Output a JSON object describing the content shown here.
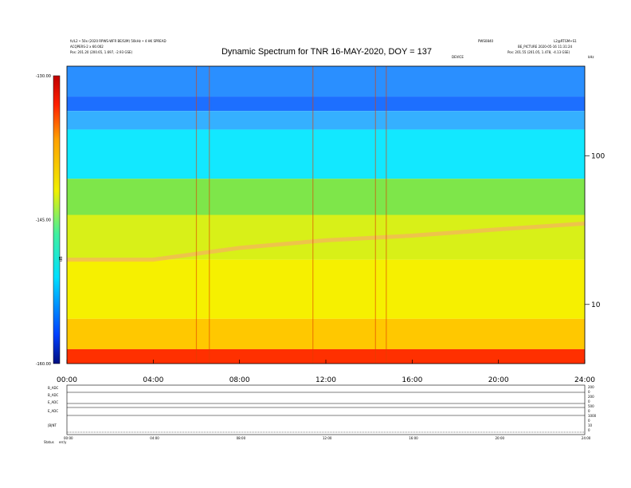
{
  "header": {
    "top_left_line1": "fs/L2 • 50x (2020 RPWS-WFR BE/S/M) 50kHz • 4 HK SPREAD",
    "top_left_line2": "ACQPERS-2 x 66:002",
    "top_left_line3": "Pos: 201.20 (200.65, 1.697, -2.93 GSE)",
    "top_right_line1": "PWS0840",
    "top_right_line2": "L2@RTGM+S1",
    "top_right_line3": "BE_PICTURE 2020-05-16 11:31:24",
    "top_right_line4": "Pos: 201.55 (201.05, 1.478, -4.13 GSE)",
    "center_small": "DEVICE",
    "corner_right": "kHz"
  },
  "chart_data": {
    "type": "heatmap",
    "title": "Dynamic Spectrum for TNR 16-MAY-2020, DOY = 137",
    "x_ticks": [
      "00:00",
      "04:00",
      "08:00",
      "12:00",
      "16:00",
      "20:00",
      "24:00"
    ],
    "xlim_hours": [
      0,
      24
    ],
    "y_scale": "log",
    "y_ticks": [
      "100",
      "10"
    ],
    "y_tick_values": [
      100,
      10
    ],
    "ylim_khz": [
      4,
      400
    ],
    "colorbar": {
      "label": "dB",
      "ticks": [
        "-130.00",
        "-145.00",
        "-160.00"
      ],
      "range_db": [
        -160,
        -130
      ],
      "colors": [
        "#001080",
        "#0040ff",
        "#00e0ff",
        "#40f0a0",
        "#f0f000",
        "#ffa000",
        "#ff2000",
        "#c00000"
      ]
    },
    "intensity_bands": [
      {
        "freq_top": 400,
        "freq_bottom": 250,
        "db": -131,
        "color": "#2a8fff"
      },
      {
        "freq_top": 250,
        "freq_bottom": 200,
        "db": -132,
        "color": "#1d6fff"
      },
      {
        "freq_top": 200,
        "freq_bottom": 150,
        "db": -134,
        "color": "#35b0ff"
      },
      {
        "freq_top": 150,
        "freq_bottom": 70,
        "db": -137,
        "color": "#12e8ff"
      },
      {
        "freq_top": 70,
        "freq_bottom": 40,
        "db": -143,
        "color": "#7ee64a"
      },
      {
        "freq_top": 40,
        "freq_bottom": 20,
        "db": -149,
        "color": "#d8f018"
      },
      {
        "freq_top": 20,
        "freq_bottom": 8,
        "db": -152,
        "color": "#f6f000"
      },
      {
        "freq_top": 8,
        "freq_bottom": 5,
        "db": -155,
        "color": "#ffc800"
      },
      {
        "freq_top": 5,
        "freq_bottom": 4,
        "db": -159,
        "color": "#ff3000"
      }
    ],
    "emission_lane": {
      "label": "",
      "hours": [
        0,
        4,
        8,
        12,
        16,
        20,
        24
      ],
      "freq_khz": [
        20,
        20,
        24,
        27,
        29,
        32,
        35
      ]
    },
    "bursts_hours": [
      6.0,
      6.6,
      11.4,
      14.3,
      14.8
    ]
  },
  "lower_panel": {
    "row_labels": [
      "B_ADC",
      "B_ADC",
      "E_ADC",
      "E_ADC",
      "|B|NT"
    ],
    "right_labels": [
      "200",
      "0",
      "200",
      "0",
      "500",
      "0",
      "1000",
      "0",
      "10",
      "0"
    ],
    "x_ticks": [
      "00:00",
      "04:00",
      "08:00",
      "12:00",
      "16:00",
      "20:00",
      "24:00"
    ],
    "footer_left": "Status",
    "footer_left2": "err/y"
  }
}
